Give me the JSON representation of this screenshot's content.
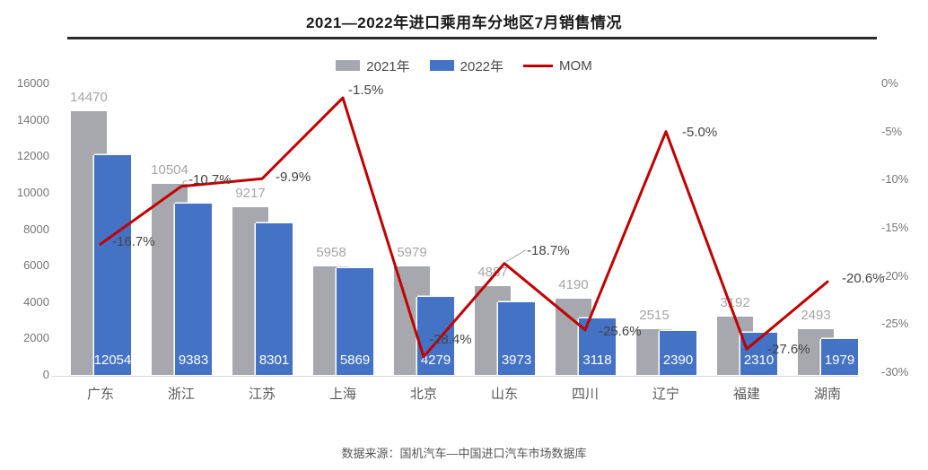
{
  "title": "2021—2022年进口乘用车分地区7月销售情况",
  "legend": {
    "items": [
      {
        "label": "2021年",
        "color": "#a6a8ad",
        "swatch": "box"
      },
      {
        "label": "2022年",
        "color": "#4472c4",
        "swatch": "box"
      },
      {
        "label": "MOM",
        "color": "#c00000",
        "swatch": "line"
      }
    ]
  },
  "source": "数据来源：国机汽车—中国进口汽车市场数据库",
  "colors": {
    "bar_2021": "#a6a8ad",
    "bar_2022": "#4472c4",
    "mom_line": "#c00000",
    "leader": "#a6a6a6"
  },
  "chart_data": {
    "type": "bar",
    "subtype": "overlapped bars + line on secondary axis",
    "title": "2021—2022年进口乘用车分地区7月销售情况",
    "categories": [
      "广东",
      "浙江",
      "江苏",
      "上海",
      "北京",
      "山东",
      "四川",
      "辽宁",
      "福建",
      "湖南"
    ],
    "series": [
      {
        "name": "2021年",
        "type": "bar",
        "color": "#a6a8ad",
        "axis": "left",
        "values": [
          14470,
          10504,
          9217,
          5958,
          5979,
          4887,
          4190,
          2515,
          3192,
          2493
        ]
      },
      {
        "name": "2022年",
        "type": "bar",
        "color": "#4472c4",
        "axis": "left",
        "values": [
          12054,
          9383,
          8301,
          5869,
          4279,
          3973,
          3118,
          2390,
          2310,
          1979
        ]
      },
      {
        "name": "MOM",
        "type": "line",
        "color": "#c00000",
        "axis": "right",
        "values": [
          -16.7,
          -10.7,
          -9.9,
          -1.5,
          -28.4,
          -18.7,
          -25.6,
          -5.0,
          -27.6,
          -20.6
        ]
      }
    ],
    "mom_labels": [
      "-16.7%",
      "-10.7%",
      "-9.9%",
      "-1.5%",
      "-28.4%",
      "-18.7%",
      "-25.6%",
      "-5.0%",
      "-27.6%",
      "-20.6%"
    ],
    "left_axis": {
      "min": 0,
      "max": 16000,
      "step": 2000,
      "ticks": [
        "0",
        "2000",
        "4000",
        "6000",
        "8000",
        "10000",
        "12000",
        "14000",
        "16000"
      ]
    },
    "right_axis": {
      "min": -30,
      "max": 0,
      "step": -5,
      "ticks": [
        "0%",
        "-5%",
        "-10%",
        "-15%",
        "-20%",
        "-25%",
        "-30%"
      ]
    },
    "grid": false,
    "legend_position": "top",
    "source_note": "数据来源：国机汽车—中国进口汽车市场数据库"
  }
}
